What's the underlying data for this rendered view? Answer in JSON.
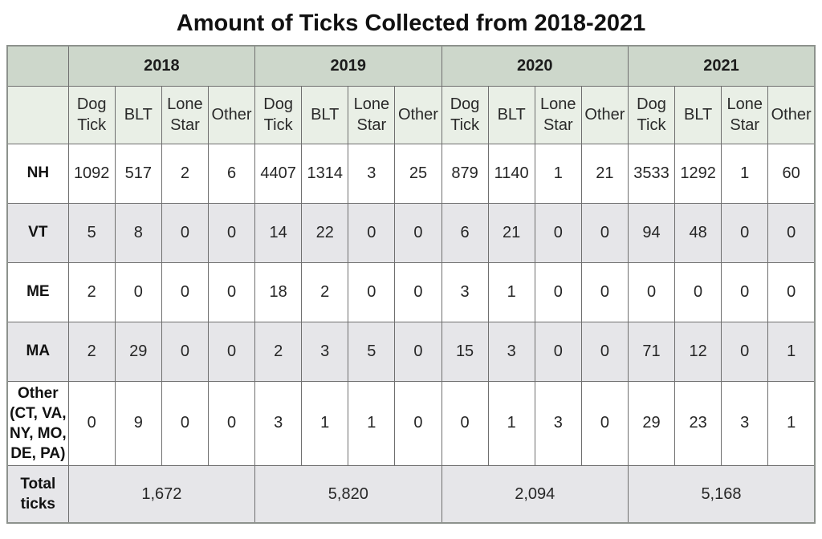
{
  "title": "Amount of Ticks Collected from 2018-2021",
  "colors": {
    "year_header_bg": "#cdd7cb",
    "subheader_bg": "#e9efe6",
    "alt_row_bg": "#e6e6e9",
    "white_row_bg": "#ffffff",
    "border": "#6f6f6f",
    "text": "#262626"
  },
  "chart_data": {
    "type": "table",
    "title": "Amount of Ticks Collected from 2018-2021",
    "years": [
      "2018",
      "2019",
      "2020",
      "2021"
    ],
    "tick_types": [
      "Dog Tick",
      "BLT",
      "Lone Star",
      "Other"
    ],
    "rows": [
      {
        "label": "NH",
        "values": [
          1092,
          517,
          2,
          6,
          4407,
          1314,
          3,
          25,
          879,
          1140,
          1,
          21,
          3533,
          1292,
          1,
          60
        ]
      },
      {
        "label": "VT",
        "values": [
          5,
          8,
          0,
          0,
          14,
          22,
          0,
          0,
          6,
          21,
          0,
          0,
          94,
          48,
          0,
          0
        ]
      },
      {
        "label": "ME",
        "values": [
          2,
          0,
          0,
          0,
          18,
          2,
          0,
          0,
          3,
          1,
          0,
          0,
          0,
          0,
          0,
          0
        ]
      },
      {
        "label": "MA",
        "values": [
          2,
          29,
          0,
          0,
          2,
          3,
          5,
          0,
          15,
          3,
          0,
          0,
          71,
          12,
          0,
          1
        ]
      },
      {
        "label": "Other (CT, VA, NY, MO, DE, PA)",
        "values": [
          0,
          9,
          0,
          0,
          3,
          1,
          1,
          0,
          0,
          1,
          3,
          0,
          29,
          23,
          3,
          1
        ]
      }
    ],
    "totals": {
      "label": "Total ticks",
      "values": [
        "1,672",
        "5,820",
        "2,094",
        "5,168"
      ]
    }
  }
}
